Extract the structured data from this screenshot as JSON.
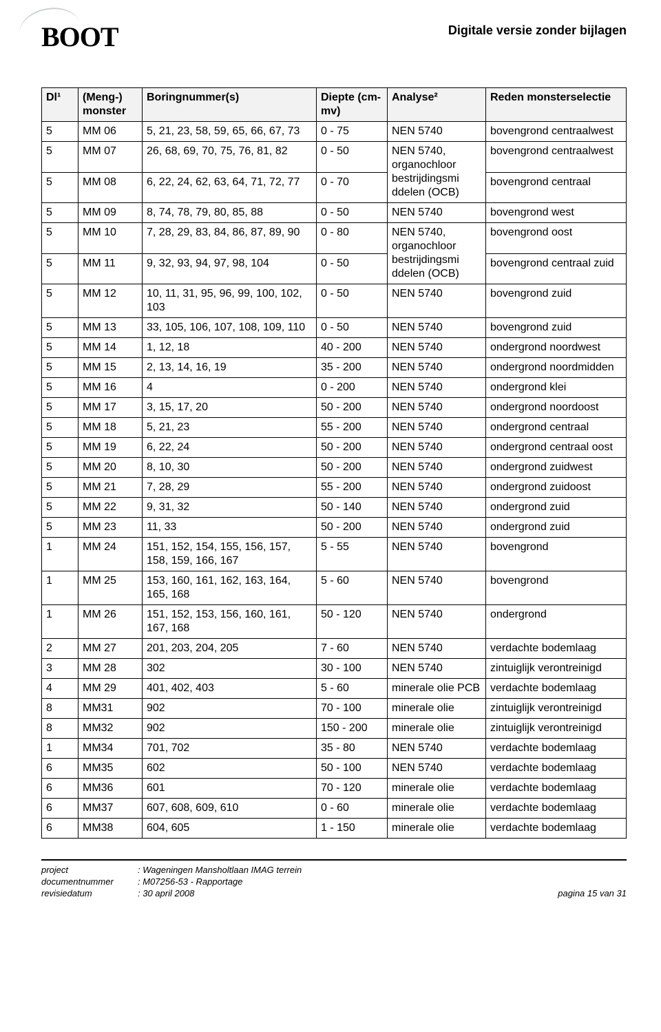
{
  "header": {
    "logo_text": "BOOT",
    "title": "Digitale versie zonder bijlagen"
  },
  "table": {
    "columns": [
      "Dl¹",
      "(Meng-) monster",
      "Boringnummer(s)",
      "Diepte (cm-mv)",
      "Analyse²",
      "Reden monsterselectie"
    ],
    "rows": [
      [
        "5",
        "MM 06",
        "5, 21, 23, 58, 59, 65, 66, 67, 73",
        "0 - 75",
        "NEN 5740",
        "bovengrond centraalwest"
      ],
      [
        "5",
        "MM 07",
        "26, 68, 69, 70, 75, 76, 81, 82",
        "0 - 50",
        "NEN 5740, organochloor bestrijdingsmi ddelen (OCB)",
        "bovengrond centraalwest"
      ],
      [
        "5",
        "MM 08",
        "6, 22, 24, 62, 63, 64, 71, 72, 77",
        "0 - 70",
        "",
        "bovengrond centraal"
      ],
      [
        "5",
        "MM 09",
        "8, 74, 78, 79, 80, 85, 88",
        "0 - 50",
        "NEN 5740",
        "bovengrond west"
      ],
      [
        "5",
        "MM 10",
        "7, 28, 29, 83, 84, 86, 87, 89, 90",
        "0 - 80",
        "NEN 5740, organochloor",
        "bovengrond oost"
      ],
      [
        "5",
        "MM 11",
        "9, 32, 93, 94, 97, 98, 104",
        "0 - 50",
        "bestrijdingsmi ddelen (OCB)",
        "bovengrond centraal zuid"
      ],
      [
        "5",
        "MM 12",
        "10, 11, 31, 95, 96, 99, 100, 102, 103",
        "0 - 50",
        "NEN 5740",
        "bovengrond zuid"
      ],
      [
        "5",
        "MM 13",
        "33, 105, 106, 107, 108, 109, 110",
        "0 - 50",
        "NEN 5740",
        "bovengrond zuid"
      ],
      [
        "5",
        "MM 14",
        "1, 12, 18",
        "40 - 200",
        "NEN 5740",
        "ondergrond noordwest"
      ],
      [
        "5",
        "MM 15",
        "2, 13, 14, 16, 19",
        "35 - 200",
        "NEN 5740",
        "ondergrond noordmidden"
      ],
      [
        "5",
        "MM 16",
        "4",
        "0 - 200",
        "NEN 5740",
        "ondergrond klei"
      ],
      [
        "5",
        "MM 17",
        "3, 15, 17, 20",
        "50 - 200",
        "NEN 5740",
        "ondergrond noordoost"
      ],
      [
        "5",
        "MM 18",
        "5, 21, 23",
        "55 - 200",
        "NEN 5740",
        "ondergrond centraal"
      ],
      [
        "5",
        "MM 19",
        "6, 22, 24",
        "50 - 200",
        "NEN 5740",
        "ondergrond centraal oost"
      ],
      [
        "5",
        "MM 20",
        "8, 10, 30",
        "50 - 200",
        "NEN 5740",
        "ondergrond zuidwest"
      ],
      [
        "5",
        "MM 21",
        "7, 28, 29",
        "55 - 200",
        "NEN 5740",
        "ondergrond zuidoost"
      ],
      [
        "5",
        "MM 22",
        "9, 31, 32",
        "50 - 140",
        "NEN 5740",
        "ondergrond zuid"
      ],
      [
        "5",
        "MM 23",
        "11, 33",
        "50 - 200",
        "NEN 5740",
        "ondergrond zuid"
      ],
      [
        "1",
        "MM 24",
        "151, 152, 154, 155, 156, 157, 158, 159, 166, 167",
        "5 - 55",
        "NEN 5740",
        "bovengrond"
      ],
      [
        "1",
        "MM 25",
        "153, 160, 161, 162, 163, 164, 165, 168",
        "5 - 60",
        "NEN 5740",
        "bovengrond"
      ],
      [
        "1",
        "MM 26",
        "151, 152, 153, 156, 160, 161, 167, 168",
        "50 - 120",
        "NEN 5740",
        "ondergrond"
      ],
      [
        "2",
        "MM 27",
        "201, 203, 204, 205",
        "7 - 60",
        "NEN 5740",
        "verdachte bodemlaag"
      ],
      [
        "3",
        "MM 28",
        "302",
        "30 - 100",
        "NEN 5740",
        "zintuiglijk verontreinigd"
      ],
      [
        "4",
        "MM 29",
        "401, 402, 403",
        "5 - 60",
        "minerale olie PCB",
        "verdachte bodemlaag"
      ],
      [
        "8",
        "MM31",
        "902",
        "70 - 100",
        "minerale olie",
        "zintuiglijk verontreinigd"
      ],
      [
        "8",
        "MM32",
        "902",
        "150 - 200",
        "minerale olie",
        "zintuiglijk verontreinigd"
      ],
      [
        "1",
        "MM34",
        "701, 702",
        "35 - 80",
        "NEN 5740",
        "verdachte bodemlaag"
      ],
      [
        "6",
        "MM35",
        "602",
        "50 - 100",
        "NEN 5740",
        "verdachte bodemlaag"
      ],
      [
        "6",
        "MM36",
        "601",
        "70 - 120",
        "minerale olie",
        "verdachte bodemlaag"
      ],
      [
        "6",
        "MM37",
        "607, 608, 609, 610",
        "0 - 60",
        "minerale olie",
        "verdachte bodemlaag"
      ],
      [
        "6",
        "MM38",
        "604, 605",
        "1 - 150",
        "minerale olie",
        "verdachte bodemlaag"
      ]
    ],
    "merge_analyse_07_08": true,
    "merge_analyse_10_11": true
  },
  "footer": {
    "labels": {
      "project": "project",
      "docnum": "documentnummer",
      "revdate": "revisiedatum"
    },
    "values": {
      "project": ": Wageningen Mansholtlaan IMAG terrein",
      "docnum": ": M07256-53 - Rapportage",
      "revdate": ": 30 april 2008"
    },
    "page": "pagina 15 van 31"
  }
}
